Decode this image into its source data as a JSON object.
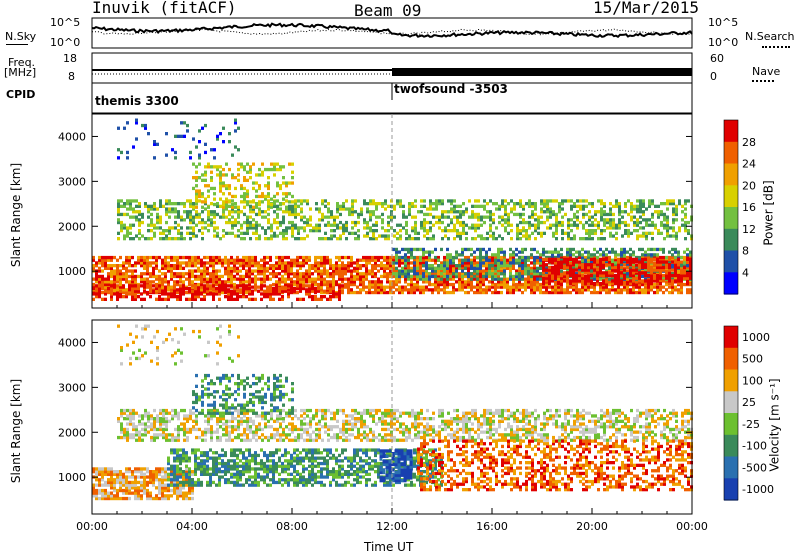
{
  "header": {
    "station": "Inuvik (fitACF)",
    "beam": "Beam 09",
    "date": "15/Mar/2015"
  },
  "top_panels": {
    "nsky_label": "N.Sky",
    "nsky_ticks": [
      "10^5",
      "10^0"
    ],
    "nsearch_label": "N.Search",
    "nsearch_ticks": [
      "10^5",
      "10^0"
    ],
    "freq_label_1": "Freq.",
    "freq_label_2": "[MHz]",
    "freq_ticks": [
      "18",
      "8"
    ],
    "nave_label": "Nave",
    "nave_ticks": [
      "60",
      "0"
    ],
    "cpid_label": "CPID",
    "cpid_segments": [
      {
        "label": "themis 3300",
        "start_hour": 0
      },
      {
        "label": "twofsound -3503",
        "start_hour": 12
      }
    ]
  },
  "chart_data": [
    {
      "type": "heatmap",
      "title": "",
      "ylabel": "Slant Range [km]",
      "ylim": [
        180,
        4500
      ],
      "yticks": [
        "1000",
        "2000",
        "3000",
        "4000"
      ],
      "xlim_hours": [
        0,
        24
      ],
      "colorbar_label": "Power [dB]",
      "colorbar_ticks": [
        "4",
        "8",
        "12",
        "16",
        "20",
        "24",
        "28"
      ],
      "colors": [
        "#0000ff",
        "#1f50a8",
        "#3a8a5a",
        "#73c040",
        "#d8d000",
        "#f0a000",
        "#f06000",
        "#e00000"
      ]
    },
    {
      "type": "heatmap",
      "title": "",
      "ylabel": "Slant Range [km]",
      "ylim": [
        180,
        4500
      ],
      "yticks": [
        "1000",
        "2000",
        "3000",
        "4000"
      ],
      "xlim_hours": [
        0,
        24
      ],
      "colorbar_label": "Velocity [m s⁻¹]",
      "colorbar_ticks": [
        "1000",
        "500",
        "100",
        "25",
        "-25",
        "-100",
        "-500",
        "-1000"
      ],
      "colors": [
        "#1840b0",
        "#2a70b0",
        "#3a8a5a",
        "#6cc030",
        "#c8c8c8",
        "#f0a000",
        "#f06000",
        "#e00000"
      ]
    }
  ],
  "xaxis": {
    "ticks": [
      "00:00",
      "04:00",
      "08:00",
      "12:00",
      "16:00",
      "20:00",
      "00:00"
    ],
    "label": "Time UT"
  }
}
